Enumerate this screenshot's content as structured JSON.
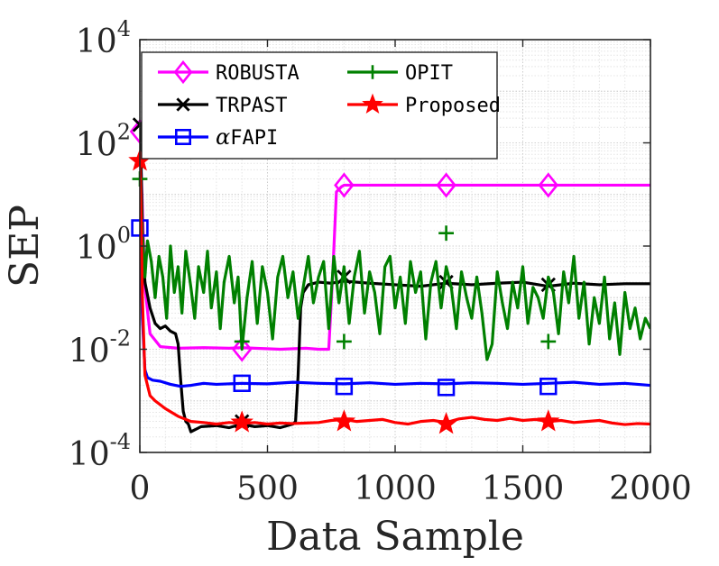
{
  "chart_data": {
    "type": "line",
    "title": "",
    "xlabel": "Data Sample",
    "ylabel": "SEP",
    "xlim": [
      0,
      2000
    ],
    "ylim_log10": [
      -4,
      4
    ],
    "yscale": "log",
    "grid": true,
    "legend_position": "top-left",
    "x_ticks": [
      {
        "value": 0,
        "label": "0"
      },
      {
        "value": 500,
        "label": "500"
      },
      {
        "value": 1000,
        "label": "1000"
      },
      {
        "value": 1500,
        "label": "1500"
      },
      {
        "value": 2000,
        "label": "2000"
      }
    ],
    "y_ticks": [
      {
        "exp": -4,
        "base": "10",
        "sup": "-4"
      },
      {
        "exp": -2,
        "base": "10",
        "sup": "-2"
      },
      {
        "exp": 0,
        "base": "10",
        "sup": "0"
      },
      {
        "exp": 2,
        "base": "10",
        "sup": "2"
      },
      {
        "exp": 4,
        "base": "10",
        "sup": "4"
      }
    ],
    "series": [
      {
        "name": "ROBUSTA",
        "legend_label": "ROBUSTA",
        "color": "#ff00ff",
        "marker": "diamond",
        "x": [
          0,
          5,
          20,
          40,
          80,
          150,
          250,
          350,
          400,
          450,
          550,
          650,
          700,
          740,
          755,
          770,
          790,
          800,
          900,
          1000,
          1100,
          1200,
          1300,
          1400,
          1500,
          1600,
          1700,
          1800,
          1900,
          2000
        ],
        "log10_y": [
          2.2,
          1.5,
          -0.8,
          -1.7,
          -1.95,
          -1.98,
          -1.97,
          -1.98,
          -1.97,
          -1.98,
          -2.0,
          -1.98,
          -2.0,
          -2.0,
          -0.6,
          1.05,
          1.15,
          1.18,
          1.18,
          1.18,
          1.18,
          1.18,
          1.18,
          1.18,
          1.18,
          1.18,
          1.18,
          1.18,
          1.18,
          1.18
        ],
        "marker_x": [
          0,
          400,
          800,
          1200,
          1600
        ],
        "marker_log10_y": [
          2.22,
          -2.0,
          1.18,
          1.18,
          1.18
        ]
      },
      {
        "name": "TRPAST",
        "legend_label": "TRPAST",
        "color": "#000000",
        "marker": "x",
        "x": [
          0,
          5,
          10,
          20,
          40,
          60,
          80,
          100,
          120,
          140,
          150,
          160,
          170,
          180,
          190,
          200,
          240,
          300,
          350,
          400,
          450,
          500,
          550,
          600,
          610,
          620,
          630,
          640,
          660,
          700,
          750,
          800,
          900,
          1000,
          1100,
          1200,
          1300,
          1400,
          1500,
          1600,
          1700,
          1800,
          1900,
          2000
        ],
        "log10_y": [
          2.3,
          1.5,
          0.3,
          -0.7,
          -1.2,
          -1.5,
          -1.6,
          -1.55,
          -1.65,
          -1.7,
          -1.9,
          -2.6,
          -3.2,
          -3.4,
          -3.45,
          -3.6,
          -3.5,
          -3.48,
          -3.52,
          -3.45,
          -3.5,
          -3.48,
          -3.52,
          -3.45,
          -3.4,
          -2.5,
          -1.2,
          -0.9,
          -0.75,
          -0.7,
          -0.72,
          -0.68,
          -0.72,
          -0.75,
          -0.78,
          -0.72,
          -0.75,
          -0.72,
          -0.7,
          -0.78,
          -0.72,
          -0.75,
          -0.73,
          -0.73
        ],
        "marker_x": [
          0,
          400,
          800,
          1200,
          1600
        ],
        "marker_log10_y": [
          2.35,
          -3.4,
          -0.6,
          -0.7,
          -0.75
        ]
      },
      {
        "name": "αFAPI",
        "legend_label": "FAPI",
        "legend_prefix": "α",
        "color": "#0000ff",
        "marker": "square",
        "x": [
          0,
          5,
          10,
          20,
          30,
          50,
          80,
          120,
          160,
          200,
          250,
          300,
          400,
          500,
          600,
          700,
          800,
          900,
          1000,
          1100,
          1200,
          1300,
          1400,
          1500,
          1600,
          1700,
          1800,
          1900,
          2000
        ],
        "log10_y": [
          0.4,
          -0.5,
          -1.4,
          -2.4,
          -2.55,
          -2.6,
          -2.62,
          -2.68,
          -2.72,
          -2.7,
          -2.66,
          -2.68,
          -2.66,
          -2.67,
          -2.64,
          -2.66,
          -2.67,
          -2.65,
          -2.68,
          -2.66,
          -2.67,
          -2.65,
          -2.66,
          -2.68,
          -2.66,
          -2.64,
          -2.68,
          -2.66,
          -2.7
        ],
        "marker_x": [
          0,
          400,
          800,
          1200,
          1600
        ],
        "marker_log10_y": [
          0.35,
          -2.66,
          -2.72,
          -2.74,
          -2.72
        ]
      },
      {
        "name": "OPIT",
        "legend_label": "OPIT",
        "color": "#008000",
        "marker": "plus",
        "x": [
          0,
          10,
          20,
          30,
          45,
          60,
          75,
          90,
          105,
          120,
          135,
          150,
          165,
          180,
          200,
          215,
          230,
          250,
          265,
          280,
          300,
          315,
          330,
          350,
          370,
          385,
          400,
          420,
          440,
          460,
          480,
          500,
          520,
          540,
          560,
          580,
          600,
          620,
          640,
          660,
          680,
          700,
          720,
          740,
          760,
          780,
          800,
          820,
          840,
          860,
          880,
          900,
          920,
          940,
          960,
          980,
          1000,
          1020,
          1040,
          1060,
          1080,
          1100,
          1120,
          1140,
          1160,
          1180,
          1200,
          1220,
          1240,
          1260,
          1280,
          1300,
          1320,
          1340,
          1360,
          1380,
          1400,
          1420,
          1440,
          1460,
          1480,
          1500,
          1520,
          1540,
          1560,
          1580,
          1600,
          1620,
          1640,
          1660,
          1680,
          1700,
          1720,
          1740,
          1760,
          1780,
          1800,
          1820,
          1840,
          1860,
          1880,
          1900,
          1920,
          1940,
          1960,
          1980,
          2000
        ],
        "log10_y": [
          1.6,
          0.2,
          -0.6,
          0.1,
          -0.3,
          -1.0,
          -0.2,
          -0.6,
          -1.4,
          0.0,
          -0.9,
          -0.4,
          -1.3,
          -0.1,
          -0.8,
          -1.4,
          -0.4,
          -0.9,
          -0.1,
          -1.2,
          -0.5,
          -1.6,
          -0.7,
          -0.2,
          -1.1,
          -0.6,
          -2.0,
          -1.0,
          -0.3,
          -1.5,
          -0.4,
          -0.9,
          -1.8,
          -0.6,
          -0.2,
          -1.0,
          -0.5,
          -1.4,
          -0.8,
          -0.2,
          -1.1,
          -0.6,
          -0.3,
          -1.6,
          -0.2,
          -1.1,
          -0.4,
          -1.5,
          -0.6,
          -0.1,
          -1.3,
          -0.5,
          -0.9,
          -1.7,
          -0.4,
          -0.2,
          -1.2,
          -0.6,
          -1.5,
          -0.3,
          -0.9,
          -0.5,
          -1.8,
          -0.7,
          -0.3,
          -1.2,
          -0.4,
          -0.8,
          -1.6,
          -0.5,
          -1.0,
          -1.4,
          -0.6,
          -1.3,
          -2.2,
          -1.9,
          -0.5,
          -1.1,
          -1.6,
          -0.7,
          -1.2,
          -0.4,
          -1.5,
          -0.8,
          -1.0,
          -1.4,
          -0.6,
          -0.9,
          -1.7,
          -0.5,
          -1.1,
          -0.2,
          -1.4,
          -0.7,
          -1.9,
          -1.0,
          -1.5,
          -0.6,
          -1.8,
          -1.1,
          -2.1,
          -0.9,
          -1.6,
          -1.2,
          -1.8,
          -1.4,
          -1.6
        ],
        "marker_x": [
          0,
          400,
          800,
          1200,
          1600
        ],
        "marker_log10_y": [
          1.3,
          -1.85,
          -1.85,
          0.25,
          -1.85
        ]
      },
      {
        "name": "Proposed",
        "legend_label": "Proposed",
        "color": "#ff0000",
        "marker": "star",
        "x": [
          0,
          5,
          10,
          20,
          40,
          60,
          100,
          150,
          200,
          250,
          300,
          350,
          400,
          450,
          500,
          550,
          600,
          650,
          700,
          750,
          800,
          850,
          900,
          950,
          1000,
          1050,
          1100,
          1150,
          1200,
          1250,
          1300,
          1350,
          1400,
          1450,
          1500,
          1550,
          1600,
          1650,
          1700,
          1750,
          1800,
          1850,
          1900,
          1950,
          2000
        ],
        "log10_y": [
          1.7,
          0.6,
          -1.0,
          -2.5,
          -2.9,
          -3.0,
          -3.15,
          -3.3,
          -3.4,
          -3.42,
          -3.45,
          -3.42,
          -3.44,
          -3.42,
          -3.45,
          -3.43,
          -3.44,
          -3.43,
          -3.42,
          -3.38,
          -3.36,
          -3.4,
          -3.38,
          -3.36,
          -3.42,
          -3.45,
          -3.4,
          -3.38,
          -3.42,
          -3.35,
          -3.32,
          -3.36,
          -3.38,
          -3.34,
          -3.38,
          -3.36,
          -3.4,
          -3.38,
          -3.42,
          -3.4,
          -3.38,
          -3.43,
          -3.46,
          -3.44,
          -3.45
        ],
        "marker_x": [
          0,
          400,
          800,
          1200,
          1600
        ],
        "marker_log10_y": [
          1.65,
          -3.42,
          -3.4,
          -3.45,
          -3.4
        ]
      }
    ]
  }
}
